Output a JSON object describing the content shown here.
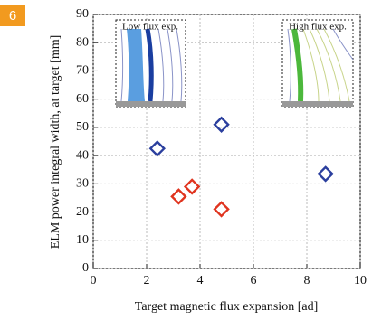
{
  "badge": "6",
  "chart_data": {
    "type": "scatter",
    "xlabel": "Target magnetic flux expansion [ad]",
    "ylabel": "ELM power integral width, at target [mm]",
    "annotations": [
      "Low flux exp.",
      "High flux exp."
    ],
    "series": [
      {
        "color": "#2b3f9e",
        "x": [
          2.4,
          4.8,
          8.7
        ],
        "values": [
          42.5,
          51,
          33.5
        ]
      },
      {
        "color": "#e0341f",
        "x": [
          3.2,
          3.7,
          4.8
        ],
        "values": [
          25.5,
          29,
          21
        ]
      }
    ],
    "xlim": [
      0,
      10
    ],
    "xticks": [
      0,
      2,
      4,
      6,
      8,
      10
    ],
    "ylim": [
      0,
      90
    ],
    "yticks": [
      0,
      10,
      20,
      30,
      40,
      50,
      60,
      70,
      80,
      90
    ],
    "grid": true
  }
}
